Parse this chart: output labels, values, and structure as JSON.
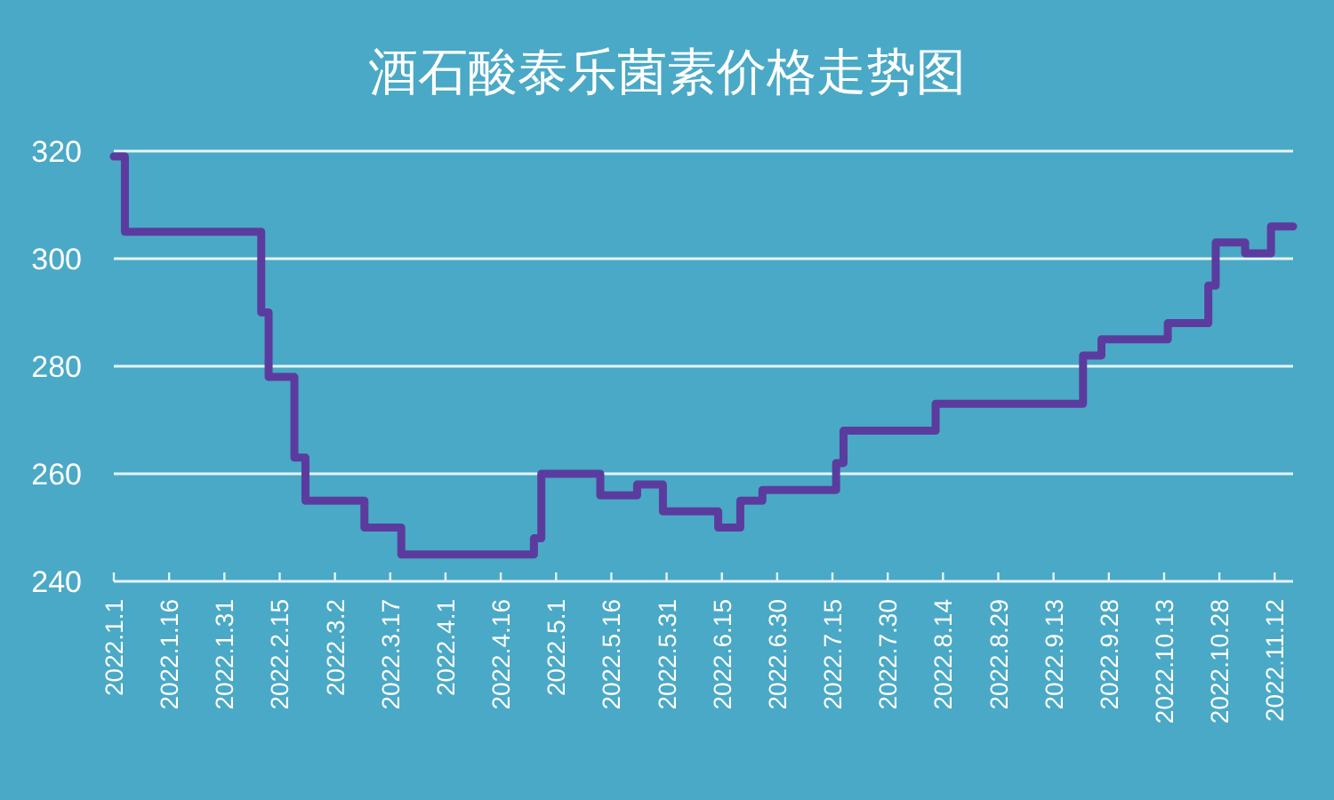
{
  "chart_data": {
    "type": "step",
    "title": "酒石酸泰乐菌素价格走势图",
    "x": [
      "2022-01-01",
      "2022-01-04",
      "2022-02-10",
      "2022-02-12",
      "2022-02-19",
      "2022-02-22",
      "2022-03-10",
      "2022-03-20",
      "2022-04-25",
      "2022-04-27",
      "2022-05-13",
      "2022-05-23",
      "2022-05-30",
      "2022-06-14",
      "2022-06-20",
      "2022-06-26",
      "2022-07-16",
      "2022-07-18",
      "2022-08-12",
      "2022-09-21",
      "2022-09-26",
      "2022-10-14",
      "2022-10-25",
      "2022-10-27",
      "2022-11-04",
      "2022-11-11",
      "2022-11-17"
    ],
    "values": [
      319,
      305,
      290,
      278,
      263,
      255,
      250,
      245,
      248,
      260,
      256,
      258,
      253,
      250,
      255,
      257,
      262,
      268,
      273,
      282,
      285,
      288,
      295,
      303,
      301,
      306,
      306
    ],
    "color": "#5b3c9e",
    "xlim": [
      "2022-01-01",
      "2022-11-17"
    ],
    "ylim": [
      240,
      320
    ],
    "yticks": [
      240,
      260,
      280,
      300,
      320
    ],
    "xticks": [
      {
        "value": "2022-01-01",
        "label": "2022.1.1"
      },
      {
        "value": "2022-01-16",
        "label": "2022.1.16"
      },
      {
        "value": "2022-01-31",
        "label": "2022.1.31"
      },
      {
        "value": "2022-02-15",
        "label": "2022.2.15"
      },
      {
        "value": "2022-03-02",
        "label": "2022.3.2"
      },
      {
        "value": "2022-03-17",
        "label": "2022.3.17"
      },
      {
        "value": "2022-04-01",
        "label": "2022.4.1"
      },
      {
        "value": "2022-04-16",
        "label": "2022.4.16"
      },
      {
        "value": "2022-05-01",
        "label": "2022.5.1"
      },
      {
        "value": "2022-05-16",
        "label": "2022.5.16"
      },
      {
        "value": "2022-05-31",
        "label": "2022.5.31"
      },
      {
        "value": "2022-06-15",
        "label": "2022.6.15"
      },
      {
        "value": "2022-06-30",
        "label": "2022.6.30"
      },
      {
        "value": "2022-07-15",
        "label": "2022.7.15"
      },
      {
        "value": "2022-07-30",
        "label": "2022.7.30"
      },
      {
        "value": "2022-08-14",
        "label": "2022.8.14"
      },
      {
        "value": "2022-08-29",
        "label": "2022.8.29"
      },
      {
        "value": "2022-09-13",
        "label": "2022.9.13"
      },
      {
        "value": "2022-09-28",
        "label": "2022.9.28"
      },
      {
        "value": "2022-10-13",
        "label": "2022.10.13"
      },
      {
        "value": "2022-10-28",
        "label": "2022.10.28"
      },
      {
        "value": "2022-11-12",
        "label": "2022.11.12"
      }
    ],
    "grid": "y"
  }
}
